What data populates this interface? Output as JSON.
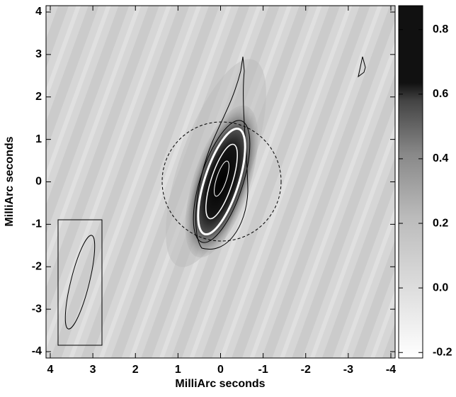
{
  "chart_data": {
    "type": "image",
    "xlabel": "MilliArc seconds",
    "ylabel": "MilliArc seconds",
    "xlim": [
      4.1,
      -4.1
    ],
    "ylim": [
      -4.15,
      4.15
    ],
    "xticks": [
      4,
      3,
      2,
      1,
      0,
      -1,
      -2,
      -3,
      -4
    ],
    "yticks": [
      -4,
      -3,
      -2,
      -1,
      0,
      1,
      2,
      3,
      4
    ],
    "clim": [
      -0.217,
      0.874
    ],
    "cticks": [
      -0.2,
      {
        "value": 0,
        "label": "0.0"
      },
      0.2,
      0.4,
      0.6,
      0.8
    ]
  }
}
